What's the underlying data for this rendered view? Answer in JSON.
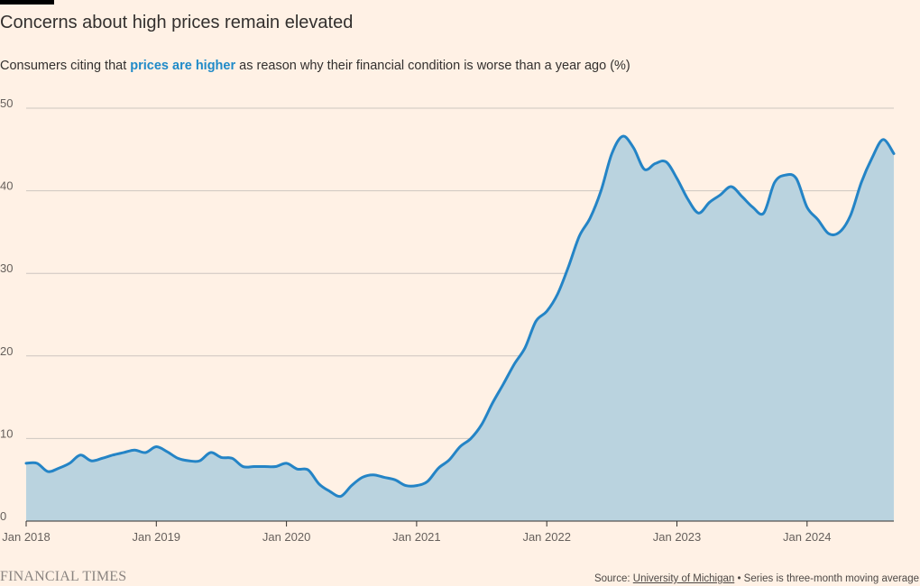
{
  "header": {
    "title": "Concerns about high prices remain elevated",
    "subtitle_pre": "Consumers citing that ",
    "subtitle_highlight": "prices are higher",
    "subtitle_post": " as reason why their financial condition is worse than a year ago (%)"
  },
  "footer": {
    "brand": "FINANCIAL TIMES",
    "source_label": "Source: ",
    "source_link": "University of Michigan",
    "source_note": " • Series is three-month moving average"
  },
  "colors": {
    "background": "#fff1e5",
    "line": "#2484c6",
    "area": "#bad3df",
    "grid": "#cec6c0"
  },
  "chart_data": {
    "type": "area",
    "title": "Concerns about high prices remain elevated",
    "xlabel": "",
    "ylabel": "",
    "ylim": [
      0,
      50
    ],
    "yticks": [
      0,
      10,
      20,
      30,
      40,
      50
    ],
    "xlim": [
      "2018-01",
      "2024-09"
    ],
    "xticks": [
      {
        "x": "2018-01",
        "label": "Jan 2018"
      },
      {
        "x": "2019-01",
        "label": "Jan 2019"
      },
      {
        "x": "2020-01",
        "label": "Jan 2020"
      },
      {
        "x": "2021-01",
        "label": "Jan 2021"
      },
      {
        "x": "2022-01",
        "label": "Jan 2022"
      },
      {
        "x": "2023-01",
        "label": "Jan 2023"
      },
      {
        "x": "2024-01",
        "label": "Jan 2024"
      }
    ],
    "grid": true,
    "series": [
      {
        "name": "prices are higher",
        "points": [
          [
            "2018-01",
            7.0
          ],
          [
            "2018-02",
            7.0
          ],
          [
            "2018-03",
            6.0
          ],
          [
            "2018-04",
            6.4
          ],
          [
            "2018-05",
            7.0
          ],
          [
            "2018-06",
            8.0
          ],
          [
            "2018-07",
            7.3
          ],
          [
            "2018-08",
            7.6
          ],
          [
            "2018-09",
            8.0
          ],
          [
            "2018-10",
            8.3
          ],
          [
            "2018-11",
            8.6
          ],
          [
            "2018-12",
            8.3
          ],
          [
            "2019-01",
            9.0
          ],
          [
            "2019-02",
            8.4
          ],
          [
            "2019-03",
            7.6
          ],
          [
            "2019-04",
            7.3
          ],
          [
            "2019-05",
            7.3
          ],
          [
            "2019-06",
            8.3
          ],
          [
            "2019-07",
            7.7
          ],
          [
            "2019-08",
            7.6
          ],
          [
            "2019-09",
            6.6
          ],
          [
            "2019-10",
            6.6
          ],
          [
            "2019-11",
            6.6
          ],
          [
            "2019-12",
            6.6
          ],
          [
            "2020-01",
            7.0
          ],
          [
            "2020-02",
            6.3
          ],
          [
            "2020-03",
            6.2
          ],
          [
            "2020-04",
            4.5
          ],
          [
            "2020-05",
            3.6
          ],
          [
            "2020-06",
            3.0
          ],
          [
            "2020-07",
            4.3
          ],
          [
            "2020-08",
            5.3
          ],
          [
            "2020-09",
            5.6
          ],
          [
            "2020-10",
            5.3
          ],
          [
            "2020-11",
            5.0
          ],
          [
            "2020-12",
            4.3
          ],
          [
            "2021-01",
            4.3
          ],
          [
            "2021-02",
            4.8
          ],
          [
            "2021-03",
            6.4
          ],
          [
            "2021-04",
            7.4
          ],
          [
            "2021-05",
            9.0
          ],
          [
            "2021-06",
            10.0
          ],
          [
            "2021-07",
            11.7
          ],
          [
            "2021-08",
            14.3
          ],
          [
            "2021-09",
            16.6
          ],
          [
            "2021-10",
            19.0
          ],
          [
            "2021-11",
            21.0
          ],
          [
            "2021-12",
            24.2
          ],
          [
            "2022-01",
            25.4
          ],
          [
            "2022-02",
            27.5
          ],
          [
            "2022-03",
            30.8
          ],
          [
            "2022-04",
            34.5
          ],
          [
            "2022-05",
            36.7
          ],
          [
            "2022-06",
            40.0
          ],
          [
            "2022-07",
            44.5
          ],
          [
            "2022-08",
            46.6
          ],
          [
            "2022-09",
            45.2
          ],
          [
            "2022-10",
            42.6
          ],
          [
            "2022-11",
            43.3
          ],
          [
            "2022-12",
            43.5
          ],
          [
            "2023-01",
            41.5
          ],
          [
            "2023-02",
            39.0
          ],
          [
            "2023-03",
            37.3
          ],
          [
            "2023-04",
            38.6
          ],
          [
            "2023-05",
            39.5
          ],
          [
            "2023-06",
            40.5
          ],
          [
            "2023-07",
            39.3
          ],
          [
            "2023-08",
            38.0
          ],
          [
            "2023-09",
            37.3
          ],
          [
            "2023-10",
            41.0
          ],
          [
            "2023-11",
            41.9
          ],
          [
            "2023-12",
            41.5
          ],
          [
            "2024-01",
            38.0
          ],
          [
            "2024-02",
            36.5
          ],
          [
            "2024-03",
            34.8
          ],
          [
            "2024-04",
            35.0
          ],
          [
            "2024-05",
            37.0
          ],
          [
            "2024-06",
            41.0
          ],
          [
            "2024-07",
            44.0
          ],
          [
            "2024-08",
            46.2
          ],
          [
            "2024-09",
            44.5
          ]
        ]
      }
    ]
  }
}
